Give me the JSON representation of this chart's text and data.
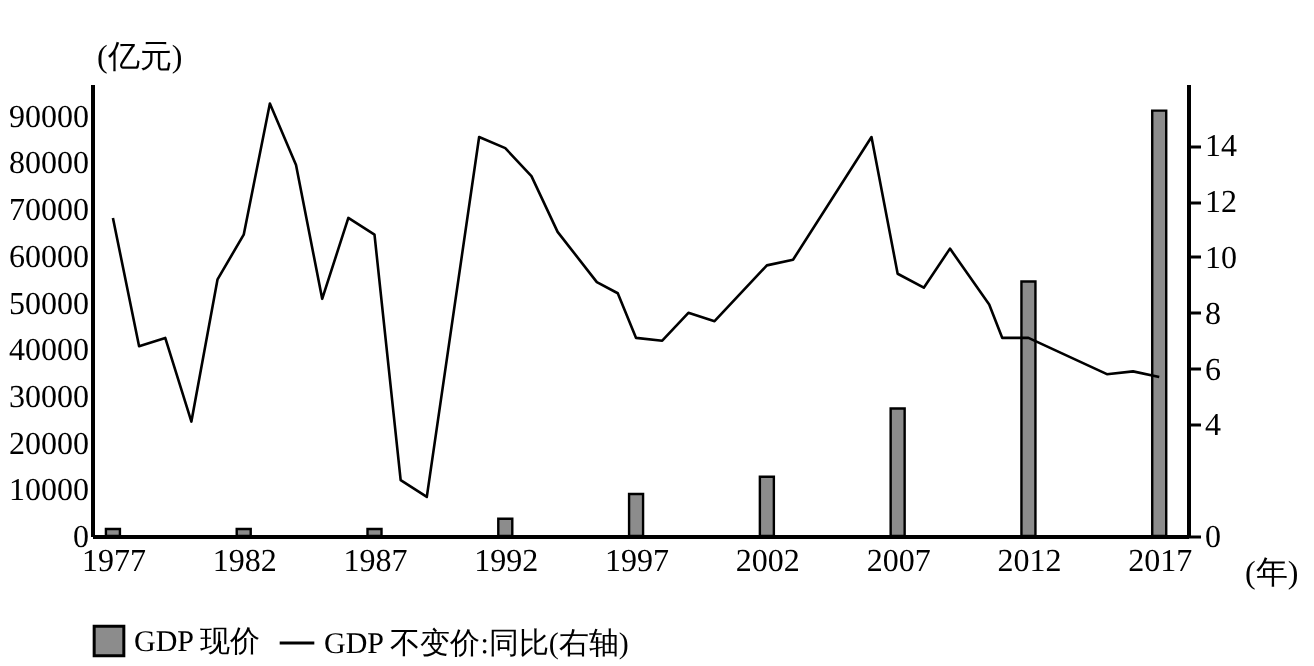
{
  "chart_data": {
    "type": "bar",
    "xlabel": "(年)",
    "ylabel": "(亿元)",
    "xlim": [
      1976.2,
      2018.1
    ],
    "xticks": [
      1977,
      1982,
      1987,
      1992,
      1997,
      2002,
      2007,
      2012,
      2017
    ],
    "ylim": [
      0,
      96800
    ],
    "yticks": [
      0,
      10000,
      20000,
      30000,
      40000,
      50000,
      60000,
      70000,
      80000,
      90000
    ],
    "y2lim": [
      0,
      16.2
    ],
    "y2ticks": [
      0,
      4,
      6,
      8,
      10,
      12,
      14
    ],
    "legend": "bottom",
    "grid": false,
    "series": [
      {
        "name": "GDP 现价",
        "color": "#8c8c8c",
        "x": [
          1977,
          1982,
          1987,
          1992,
          1997,
          2002,
          2007,
          2012,
          2017
        ],
        "values": [
          1500,
          1500,
          1500,
          3700,
          9000,
          12700,
          27300,
          54500,
          91100
        ]
      },
      {
        "name": "GDP 不变价:同比(右轴)",
        "type": "line",
        "axis": "y2",
        "color": "#000000",
        "x": [
          1977,
          1978,
          1979,
          1980,
          1981,
          1982,
          1983,
          1984,
          1985,
          1986,
          1987,
          1988,
          1989,
          1991,
          1992,
          1993,
          1994,
          1995.5,
          1996.3,
          1997,
          1998,
          1999,
          2000,
          2002,
          2003,
          2006,
          2007,
          2008,
          2009,
          2010.5,
          2011,
          2012,
          2015,
          2016,
          2017
        ],
        "values": [
          11.4,
          6.8,
          7.1,
          4.1,
          9.2,
          10.8,
          15.5,
          13.3,
          8.5,
          11.4,
          10.8,
          2.0,
          1.4,
          14.3,
          13.9,
          12.9,
          10.9,
          9.1,
          8.7,
          7.1,
          7.0,
          8.0,
          7.7,
          9.7,
          9.9,
          14.3,
          9.4,
          8.9,
          10.3,
          8.3,
          7.1,
          7.1,
          5.8,
          5.9,
          5.7
        ]
      }
    ]
  }
}
